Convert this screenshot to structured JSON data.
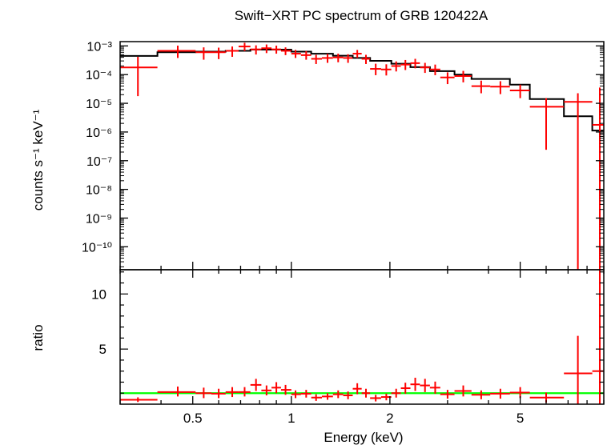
{
  "chart_data": {
    "title": "Swift−XRT PC spectrum of GRB 120422A",
    "xlabel": "Energy (keV)",
    "x_scale": "log",
    "xlim": [
      0.3,
      9.0
    ],
    "x_ticks": [
      {
        "value": 0.5,
        "label": "0.5"
      },
      {
        "value": 1,
        "label": "1"
      },
      {
        "value": 2,
        "label": "2"
      },
      {
        "value": 5,
        "label": "5"
      }
    ],
    "panels": [
      {
        "id": "spectrum",
        "type": "step+errorbar",
        "ylabel": "counts s⁻¹ keV⁻¹",
        "y_scale": "log",
        "ylim_log10": [
          -10.8,
          -2.85
        ],
        "y_ticks": [
          {
            "exp": -3,
            "label": "10⁻³"
          },
          {
            "exp": -4,
            "label": "10⁻⁴"
          },
          {
            "exp": -5,
            "label": "10⁻⁵"
          },
          {
            "exp": -6,
            "label": "10⁻⁶"
          },
          {
            "exp": -7,
            "label": "10⁻⁷"
          },
          {
            "exp": -8,
            "label": "10⁻⁸"
          },
          {
            "exp": -9,
            "label": "10⁻⁹"
          },
          {
            "exp": -10,
            "label": "10⁻¹⁰"
          }
        ],
        "data_color": "#ff0000",
        "model_color": "#000000",
        "data": [
          {
            "e": 0.34,
            "elo": 0.3,
            "ehi": 0.39,
            "log10": -3.75,
            "lo": -4.75,
            "hi": -3.38
          },
          {
            "e": 0.45,
            "elo": 0.39,
            "ehi": 0.51,
            "log10": -3.17,
            "lo": -3.42,
            "hi": -2.99
          },
          {
            "e": 0.54,
            "elo": 0.51,
            "ehi": 0.57,
            "log10": -3.22,
            "lo": -3.48,
            "hi": -3.05
          },
          {
            "e": 0.6,
            "elo": 0.57,
            "ehi": 0.63,
            "log10": -3.22,
            "lo": -3.46,
            "hi": -3.06
          },
          {
            "e": 0.66,
            "elo": 0.63,
            "ehi": 0.69,
            "log10": -3.17,
            "lo": -3.38,
            "hi": -3.02
          },
          {
            "e": 0.72,
            "elo": 0.69,
            "ehi": 0.75,
            "log10": -3.02,
            "lo": -3.18,
            "hi": -2.89
          },
          {
            "e": 0.78,
            "elo": 0.75,
            "ehi": 0.81,
            "log10": -3.12,
            "lo": -3.3,
            "hi": -2.98
          },
          {
            "e": 0.84,
            "elo": 0.81,
            "ehi": 0.87,
            "log10": -3.08,
            "lo": -3.25,
            "hi": -2.95
          },
          {
            "e": 0.9,
            "elo": 0.87,
            "ehi": 0.93,
            "log10": -3.12,
            "lo": -3.27,
            "hi": -2.99
          },
          {
            "e": 0.96,
            "elo": 0.93,
            "ehi": 1.0,
            "log10": -3.17,
            "lo": -3.32,
            "hi": -3.05
          },
          {
            "e": 1.03,
            "elo": 1.0,
            "ehi": 1.07,
            "log10": -3.27,
            "lo": -3.42,
            "hi": -3.14
          },
          {
            "e": 1.11,
            "elo": 1.07,
            "ehi": 1.15,
            "log10": -3.32,
            "lo": -3.48,
            "hi": -3.18
          },
          {
            "e": 1.19,
            "elo": 1.15,
            "ehi": 1.24,
            "log10": -3.45,
            "lo": -3.63,
            "hi": -3.31
          },
          {
            "e": 1.29,
            "elo": 1.24,
            "ehi": 1.34,
            "log10": -3.42,
            "lo": -3.59,
            "hi": -3.28
          },
          {
            "e": 1.39,
            "elo": 1.34,
            "ehi": 1.44,
            "log10": -3.4,
            "lo": -3.57,
            "hi": -3.27
          },
          {
            "e": 1.49,
            "elo": 1.44,
            "ehi": 1.54,
            "log10": -3.42,
            "lo": -3.59,
            "hi": -3.29
          },
          {
            "e": 1.59,
            "elo": 1.54,
            "ehi": 1.64,
            "log10": -3.27,
            "lo": -3.42,
            "hi": -3.14
          },
          {
            "e": 1.69,
            "elo": 1.64,
            "ehi": 1.74,
            "log10": -3.45,
            "lo": -3.63,
            "hi": -3.31
          },
          {
            "e": 1.81,
            "elo": 1.74,
            "ehi": 1.88,
            "log10": -3.8,
            "lo": -4.02,
            "hi": -3.62
          },
          {
            "e": 1.95,
            "elo": 1.88,
            "ehi": 2.02,
            "log10": -3.82,
            "lo": -4.03,
            "hi": -3.64
          },
          {
            "e": 2.09,
            "elo": 2.02,
            "ehi": 2.16,
            "log10": -3.7,
            "lo": -3.89,
            "hi": -3.54
          },
          {
            "e": 2.23,
            "elo": 2.16,
            "ehi": 2.31,
            "log10": -3.65,
            "lo": -3.84,
            "hi": -3.49
          },
          {
            "e": 2.39,
            "elo": 2.31,
            "ehi": 2.47,
            "log10": -3.6,
            "lo": -3.78,
            "hi": -3.45
          },
          {
            "e": 2.56,
            "elo": 2.47,
            "ehi": 2.65,
            "log10": -3.75,
            "lo": -3.94,
            "hi": -3.59
          },
          {
            "e": 2.75,
            "elo": 2.65,
            "ehi": 2.85,
            "log10": -3.82,
            "lo": -4.02,
            "hi": -3.65
          },
          {
            "e": 3.0,
            "elo": 2.85,
            "ehi": 3.15,
            "log10": -4.1,
            "lo": -4.33,
            "hi": -3.92
          },
          {
            "e": 3.35,
            "elo": 3.15,
            "ehi": 3.55,
            "log10": -4.05,
            "lo": -4.27,
            "hi": -3.87
          },
          {
            "e": 3.8,
            "elo": 3.55,
            "ehi": 4.05,
            "log10": -4.4,
            "lo": -4.65,
            "hi": -4.21
          },
          {
            "e": 4.35,
            "elo": 4.05,
            "ehi": 4.65,
            "log10": -4.42,
            "lo": -4.68,
            "hi": -4.23
          },
          {
            "e": 5.0,
            "elo": 4.65,
            "ehi": 5.35,
            "log10": -4.55,
            "lo": -4.82,
            "hi": -4.35
          },
          {
            "e": 6.0,
            "elo": 5.35,
            "ehi": 6.8,
            "log10": -5.12,
            "lo": -6.62,
            "hi": -4.82
          },
          {
            "e": 7.5,
            "elo": 6.8,
            "ehi": 8.3,
            "log10": -4.95,
            "lo": -10.8,
            "hi": -4.65
          },
          {
            "e": 8.75,
            "elo": 8.3,
            "ehi": 9.0,
            "log10": -5.75,
            "lo": -10.8,
            "hi": -4.45
          }
        ],
        "model_steps": [
          {
            "e1": 0.3,
            "e2": 0.39,
            "log10": -3.35
          },
          {
            "e1": 0.39,
            "e2": 0.51,
            "log10": -3.22
          },
          {
            "e1": 0.51,
            "e2": 0.63,
            "log10": -3.2
          },
          {
            "e1": 0.63,
            "e2": 0.75,
            "log10": -3.17
          },
          {
            "e1": 0.75,
            "e2": 0.87,
            "log10": -3.13
          },
          {
            "e1": 0.87,
            "e2": 1.0,
            "log10": -3.13
          },
          {
            "e1": 1.0,
            "e2": 1.15,
            "log10": -3.2
          },
          {
            "e1": 1.15,
            "e2": 1.34,
            "log10": -3.27
          },
          {
            "e1": 1.34,
            "e2": 1.54,
            "log10": -3.34
          },
          {
            "e1": 1.54,
            "e2": 1.74,
            "log10": -3.42
          },
          {
            "e1": 1.74,
            "e2": 2.02,
            "log10": -3.52
          },
          {
            "e1": 2.02,
            "e2": 2.31,
            "log10": -3.62
          },
          {
            "e1": 2.31,
            "e2": 2.65,
            "log10": -3.74
          },
          {
            "e1": 2.65,
            "e2": 3.15,
            "log10": -3.88
          },
          {
            "e1": 3.15,
            "e2": 3.55,
            "log10": -4.0
          },
          {
            "e1": 3.55,
            "e2": 4.65,
            "log10": -4.15
          },
          {
            "e1": 4.65,
            "e2": 5.35,
            "log10": -4.35
          },
          {
            "e1": 5.35,
            "e2": 6.8,
            "log10": -4.85
          },
          {
            "e1": 6.8,
            "e2": 8.3,
            "log10": -5.45
          },
          {
            "e1": 8.3,
            "e2": 9.0,
            "log10": -5.95
          }
        ]
      },
      {
        "id": "ratio",
        "type": "errorbar",
        "ylabel": "ratio",
        "y_scale": "linear",
        "ylim": [
          0,
          12.2
        ],
        "y_ticks": [
          {
            "value": 5,
            "label": "5"
          },
          {
            "value": 10,
            "label": "10"
          }
        ],
        "reference_line": {
          "value": 1,
          "color": "#00ff00"
        },
        "data_color": "#ff0000",
        "data": [
          {
            "e": 0.34,
            "elo": 0.3,
            "ehi": 0.39,
            "y": 0.4,
            "lo": 0.2,
            "hi": 0.62
          },
          {
            "e": 0.45,
            "elo": 0.39,
            "ehi": 0.51,
            "y": 1.1,
            "lo": 0.7,
            "hi": 1.6
          },
          {
            "e": 0.54,
            "elo": 0.51,
            "ehi": 0.57,
            "y": 1.0,
            "lo": 0.55,
            "hi": 1.5
          },
          {
            "e": 0.6,
            "elo": 0.57,
            "ehi": 0.63,
            "y": 0.95,
            "lo": 0.55,
            "hi": 1.4
          },
          {
            "e": 0.66,
            "elo": 0.63,
            "ehi": 0.69,
            "y": 1.1,
            "lo": 0.65,
            "hi": 1.55
          },
          {
            "e": 0.72,
            "elo": 0.69,
            "ehi": 0.75,
            "y": 1.1,
            "lo": 0.7,
            "hi": 1.55
          },
          {
            "e": 0.78,
            "elo": 0.75,
            "ehi": 0.81,
            "y": 1.75,
            "lo": 1.2,
            "hi": 2.3
          },
          {
            "e": 0.84,
            "elo": 0.81,
            "ehi": 0.87,
            "y": 1.25,
            "lo": 0.8,
            "hi": 1.7
          },
          {
            "e": 0.9,
            "elo": 0.87,
            "ehi": 0.93,
            "y": 1.5,
            "lo": 1.0,
            "hi": 2.0
          },
          {
            "e": 0.96,
            "elo": 0.93,
            "ehi": 1.0,
            "y": 1.3,
            "lo": 0.85,
            "hi": 1.75
          },
          {
            "e": 1.03,
            "elo": 1.0,
            "ehi": 1.07,
            "y": 0.9,
            "lo": 0.55,
            "hi": 1.25
          },
          {
            "e": 1.11,
            "elo": 1.07,
            "ehi": 1.15,
            "y": 0.95,
            "lo": 0.6,
            "hi": 1.3
          },
          {
            "e": 1.19,
            "elo": 1.15,
            "ehi": 1.24,
            "y": 0.6,
            "lo": 0.3,
            "hi": 0.9
          },
          {
            "e": 1.29,
            "elo": 1.24,
            "ehi": 1.34,
            "y": 0.7,
            "lo": 0.4,
            "hi": 1.0
          },
          {
            "e": 1.39,
            "elo": 1.34,
            "ehi": 1.44,
            "y": 0.9,
            "lo": 0.55,
            "hi": 1.25
          },
          {
            "e": 1.49,
            "elo": 1.44,
            "ehi": 1.54,
            "y": 0.8,
            "lo": 0.45,
            "hi": 1.15
          },
          {
            "e": 1.59,
            "elo": 1.54,
            "ehi": 1.64,
            "y": 1.4,
            "lo": 0.9,
            "hi": 1.9
          },
          {
            "e": 1.69,
            "elo": 1.64,
            "ehi": 1.74,
            "y": 1.0,
            "lo": 0.6,
            "hi": 1.4
          },
          {
            "e": 1.81,
            "elo": 1.74,
            "ehi": 1.88,
            "y": 0.55,
            "lo": 0.25,
            "hi": 0.85
          },
          {
            "e": 1.95,
            "elo": 1.88,
            "ehi": 2.02,
            "y": 0.65,
            "lo": 0.35,
            "hi": 0.95
          },
          {
            "e": 2.09,
            "elo": 2.02,
            "ehi": 2.16,
            "y": 1.0,
            "lo": 0.6,
            "hi": 1.4
          },
          {
            "e": 2.23,
            "elo": 2.16,
            "ehi": 2.31,
            "y": 1.45,
            "lo": 0.95,
            "hi": 1.95
          },
          {
            "e": 2.39,
            "elo": 2.31,
            "ehi": 2.47,
            "y": 1.8,
            "lo": 1.2,
            "hi": 2.4
          },
          {
            "e": 2.56,
            "elo": 2.47,
            "ehi": 2.65,
            "y": 1.7,
            "lo": 1.1,
            "hi": 2.3
          },
          {
            "e": 2.75,
            "elo": 2.65,
            "ehi": 2.85,
            "y": 1.5,
            "lo": 0.95,
            "hi": 2.05
          },
          {
            "e": 3.0,
            "elo": 2.85,
            "ehi": 3.15,
            "y": 0.9,
            "lo": 0.5,
            "hi": 1.3
          },
          {
            "e": 3.35,
            "elo": 3.15,
            "ehi": 3.55,
            "y": 1.2,
            "lo": 0.7,
            "hi": 1.7
          },
          {
            "e": 3.8,
            "elo": 3.55,
            "ehi": 4.05,
            "y": 0.85,
            "lo": 0.45,
            "hi": 1.25
          },
          {
            "e": 4.35,
            "elo": 4.05,
            "ehi": 4.65,
            "y": 0.95,
            "lo": 0.5,
            "hi": 1.4
          },
          {
            "e": 5.0,
            "elo": 4.65,
            "ehi": 5.35,
            "y": 1.05,
            "lo": 0.55,
            "hi": 1.55
          },
          {
            "e": 6.0,
            "elo": 5.35,
            "ehi": 6.8,
            "y": 0.6,
            "lo": 0.15,
            "hi": 1.05
          },
          {
            "e": 7.5,
            "elo": 6.8,
            "ehi": 8.3,
            "y": 2.8,
            "lo": 0.0,
            "hi": 6.2
          },
          {
            "e": 8.75,
            "elo": 8.3,
            "ehi": 9.0,
            "y": 3.0,
            "lo": 0.0,
            "hi": 12.2
          }
        ]
      }
    ]
  }
}
